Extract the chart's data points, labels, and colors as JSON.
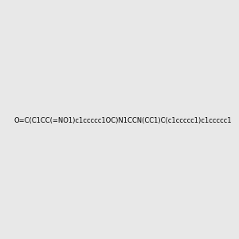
{
  "smiles": "O=C(C1CC(=NO1)c1ccccc1OC)N1CCN(CC1)C(c1ccccc1)c1ccccc1",
  "bg_color": "#e8e8e8",
  "title": "",
  "img_size": [
    300,
    300
  ]
}
